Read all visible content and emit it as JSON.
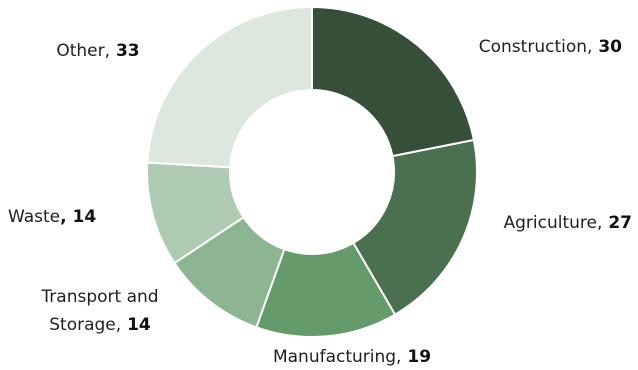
{
  "chart_data": {
    "type": "pie",
    "variant": "donut",
    "title": "",
    "categories": [
      "Construction",
      "Agriculture",
      "Manufacturing",
      "Transport and Storage",
      "Waste",
      "Other"
    ],
    "values": [
      30,
      27,
      19,
      14,
      14,
      33
    ],
    "colors": [
      "#354F38",
      "#4A7050",
      "#659A6B",
      "#8DB592",
      "#AFCAB2",
      "#DCE7DE"
    ],
    "labels": [
      {
        "name_text": "Construction,",
        "value_text": "30"
      },
      {
        "name_text": "Agriculture,",
        "value_text": "27"
      },
      {
        "name_text": "Manufacturing,",
        "value_text": "19"
      },
      {
        "name_lines": [
          "Transport and",
          "Storage,"
        ],
        "value_text": "14"
      },
      {
        "name_text": "Waste",
        "value_text": ", 14"
      },
      {
        "name_text": "Other,",
        "value_text": "33"
      }
    ],
    "legend": "none",
    "start": "top",
    "direction": "clockwise"
  }
}
